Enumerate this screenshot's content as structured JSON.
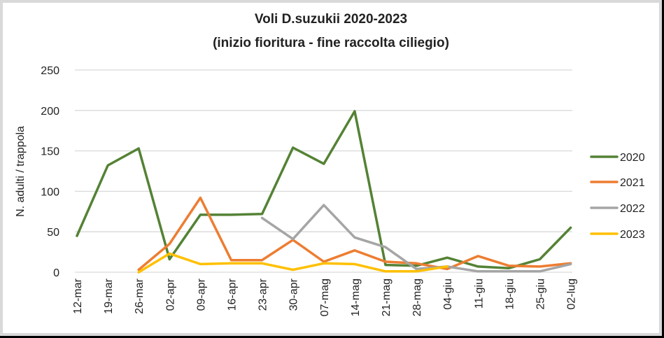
{
  "chart_data": {
    "type": "line",
    "title": "Voli D.suzukii 2020-2023",
    "subtitle": "(inizio fioritura - fine raccolta ciliegio)",
    "xlabel": "",
    "ylabel": "N. adulti / trappola",
    "ylim": [
      0,
      250
    ],
    "yticks": [
      0,
      50,
      100,
      150,
      200,
      250
    ],
    "grid": true,
    "legend_position": "right",
    "categories": [
      "12-mar",
      "19-mar",
      "26-mar",
      "02-apr",
      "09-apr",
      "16-apr",
      "23-apr",
      "30-apr",
      "07-mag",
      "14-mag",
      "21-mag",
      "28-mag",
      "04-giu",
      "11-giu",
      "18-giu",
      "25-giu",
      "02-lug"
    ],
    "series": [
      {
        "name": "2020",
        "color": "#548235",
        "values": [
          45,
          132,
          153,
          16,
          71,
          71,
          72,
          154,
          134,
          199,
          9,
          8,
          18,
          7,
          5,
          16,
          55
        ]
      },
      {
        "name": "2021",
        "color": "#ed7d31",
        "values": [
          null,
          null,
          3,
          35,
          92,
          15,
          15,
          40,
          13,
          27,
          13,
          11,
          4,
          20,
          8,
          7,
          11
        ]
      },
      {
        "name": "2022",
        "color": "#a5a5a5",
        "values": [
          null,
          null,
          null,
          null,
          null,
          null,
          67,
          41,
          83,
          43,
          31,
          4,
          7,
          1,
          1,
          1,
          10
        ]
      },
      {
        "name": "2023",
        "color": "#ffc000",
        "values": [
          null,
          null,
          0,
          23,
          10,
          11,
          11,
          3,
          11,
          10,
          1,
          1,
          7,
          null,
          null,
          null,
          null
        ]
      }
    ]
  }
}
